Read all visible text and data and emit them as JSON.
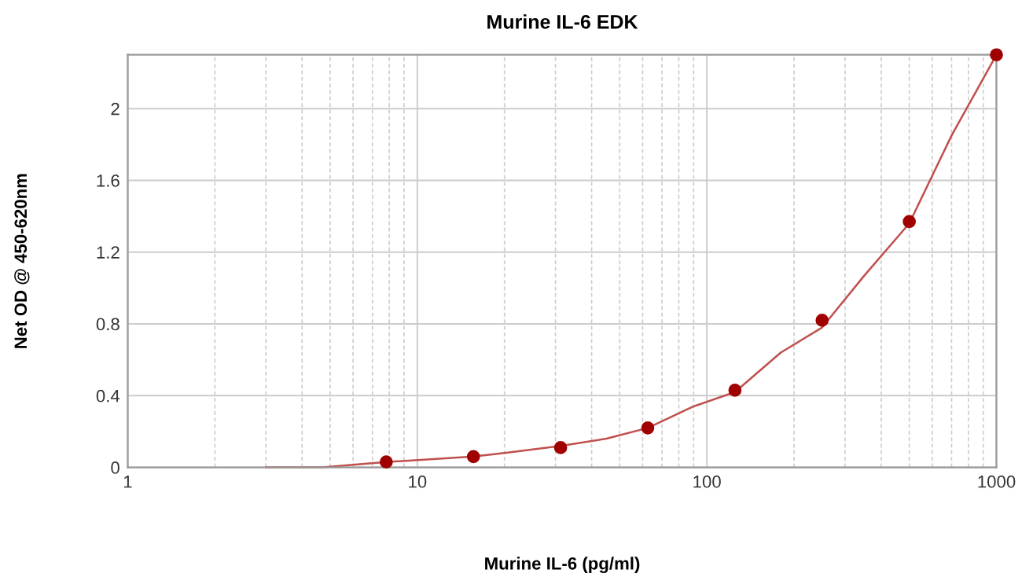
{
  "chart_data": {
    "type": "scatter",
    "title": "Murine IL-6 EDK",
    "xlabel": "Murine IL-6 (pg/ml)",
    "ylabel": "Net OD @ 450-620nm",
    "log": "x",
    "xlim": [
      1,
      1000
    ],
    "xticks": [
      1,
      10,
      100,
      1000
    ],
    "ylim": [
      0,
      2.3
    ],
    "yticks": [
      0,
      0.4,
      0.8,
      1.2,
      1.6,
      2
    ],
    "grid": true,
    "series": [
      {
        "type": "line",
        "color": "#c0504d",
        "marker": "none",
        "line_style": "solid",
        "x": [
          3,
          4.7,
          7.8,
          15.6,
          20,
          31.25,
          45,
          62.5,
          90,
          125,
          180,
          250,
          350,
          500,
          700,
          1000
        ],
        "values": [
          0,
          0,
          0.03,
          0.06,
          0.08,
          0.12,
          0.16,
          0.22,
          0.34,
          0.42,
          0.64,
          0.78,
          1.07,
          1.36,
          1.85,
          2.3
        ]
      },
      {
        "color": "#a00000",
        "marker": "circle",
        "x": [
          7.8125,
          15.625,
          31.25,
          62.5,
          125,
          250,
          500,
          1000
        ],
        "values": [
          0.03,
          0.06,
          0.11,
          0.22,
          0.43,
          0.82,
          1.37,
          2.3
        ]
      }
    ]
  }
}
